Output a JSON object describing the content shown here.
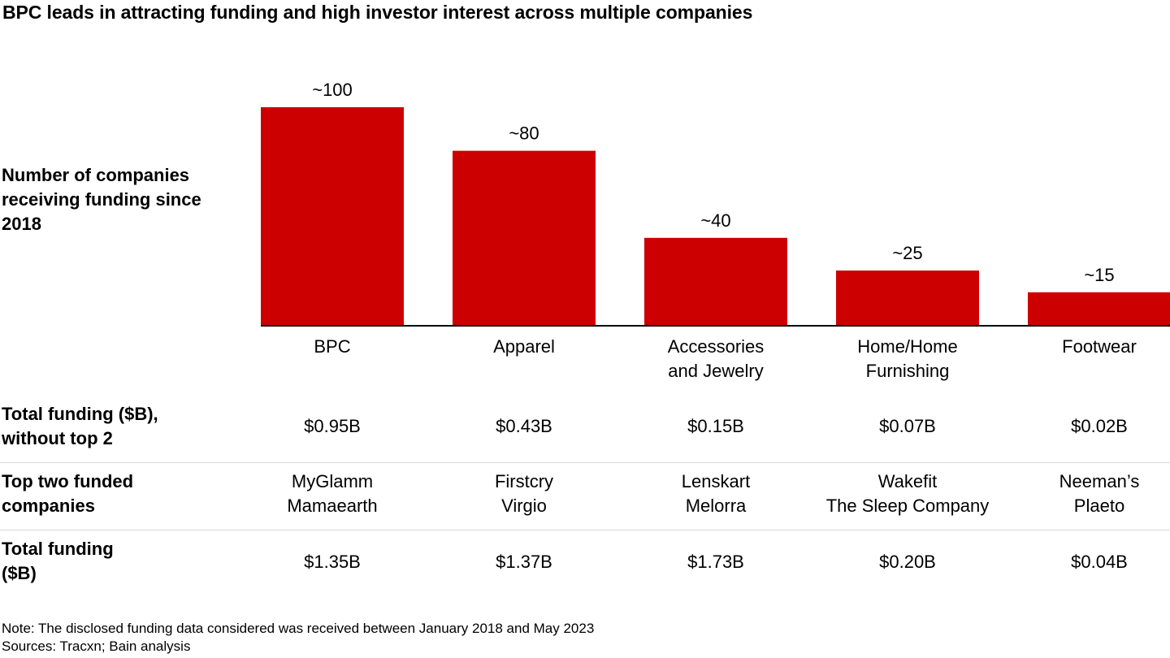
{
  "title": "BPC leads in attracting funding and high investor interest across multiple companies",
  "chart_data": {
    "type": "bar",
    "ylabel": "Number of companies receiving funding since 2018",
    "categories": [
      "BPC",
      "Apparel",
      "Accessories and Jewelry",
      "Home/Home Furnishing",
      "Footwear"
    ],
    "category_lines": [
      [
        "BPC"
      ],
      [
        "Apparel"
      ],
      [
        "Accessories",
        "and Jewelry"
      ],
      [
        "Home/Home",
        "Furnishing"
      ],
      [
        "Footwear"
      ]
    ],
    "values": [
      100,
      80,
      40,
      25,
      15
    ],
    "value_labels": [
      "~100",
      "~80",
      "~40",
      "~25",
      "~15"
    ],
    "ylim": [
      0,
      100
    ],
    "color": "#cc0000"
  },
  "table": {
    "rows": [
      {
        "label": "Total funding ($B), without top 2",
        "cells": [
          [
            "$0.95B"
          ],
          [
            "$0.43B"
          ],
          [
            "$0.15B"
          ],
          [
            "$0.07B"
          ],
          [
            "$0.02B"
          ]
        ]
      },
      {
        "label": "Top two funded companies",
        "cells": [
          [
            "MyGlamm",
            "Mamaearth"
          ],
          [
            "Firstcry",
            "Virgio"
          ],
          [
            "Lenskart",
            "Melorra"
          ],
          [
            "Wakefit",
            "The Sleep Company"
          ],
          [
            "Neeman’s",
            "Plaeto"
          ]
        ]
      },
      {
        "label": "Total funding ($B)",
        "cells": [
          [
            "$1.35B"
          ],
          [
            "$1.37B"
          ],
          [
            "$1.73B"
          ],
          [
            "$0.20B"
          ],
          [
            "$0.04B"
          ]
        ]
      }
    ]
  },
  "footnotes": {
    "note": "Note: The disclosed funding data considered was received between January 2018 and May 2023",
    "sources": "Sources: Tracxn; Bain analysis"
  }
}
